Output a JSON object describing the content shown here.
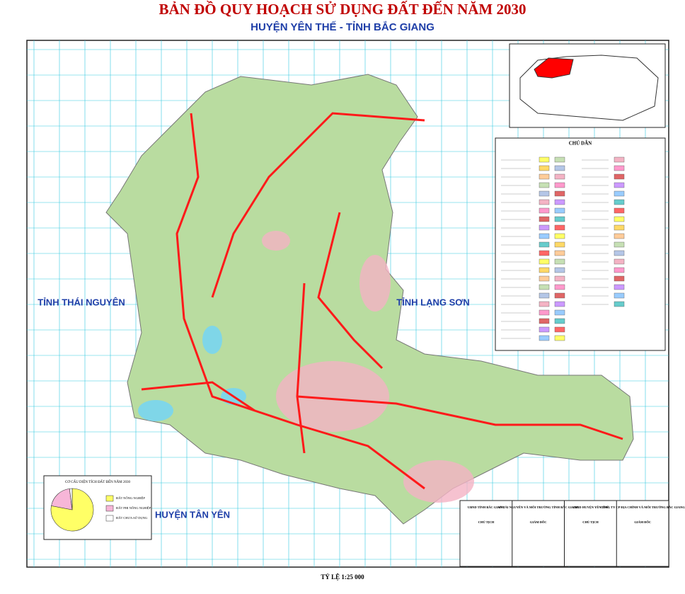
{
  "header": {
    "title": "BẢN ĐỒ QUY HOẠCH SỬ DỤNG ĐẤT ĐẾN NĂM 2030",
    "subtitle": "HUYỆN YÊN THẾ - TỈNH BẮC GIANG"
  },
  "regions": [
    "TỈNH THÁI NGUYÊN",
    "TỈNH LẠNG SƠN",
    "HUYỆN TÂN YÊN"
  ],
  "legend": {
    "title": "CHÚ DẪN"
  },
  "pie_chart": {
    "type": "pie",
    "title": "CƠ CẤU DIỆN TÍCH ĐẤT ĐẾN NĂM 2030",
    "categories": [
      "ĐẤT NÔNG NGHIỆP",
      "ĐẤT PHI NÔNG NGHIỆP",
      "ĐẤT CHƯA SỬ DỤNG"
    ],
    "values": [
      78,
      20,
      2
    ],
    "colors": [
      "#ffff66",
      "#f7b6d8",
      "#ffffff"
    ]
  },
  "signatures": [
    {
      "org": "UBND TỈNH BẮC GIANG",
      "role": "CHỦ TỊCH"
    },
    {
      "org": "SỞ TÀI NGUYÊN VÀ MÔI TRƯỜNG TỈNH BẮC GIANG",
      "role": "GIÁM ĐỐC"
    },
    {
      "org": "UBND HUYỆN YÊN THẾ",
      "role": "CHỦ TỊCH"
    },
    {
      "org": "CÔNG TY CP ĐỊA CHÍNH VÀ MÔI TRƯỜNG BẮC GIANG",
      "role": "GIÁM ĐỐC"
    }
  ],
  "scale": "TỶ LỆ 1:25 000"
}
